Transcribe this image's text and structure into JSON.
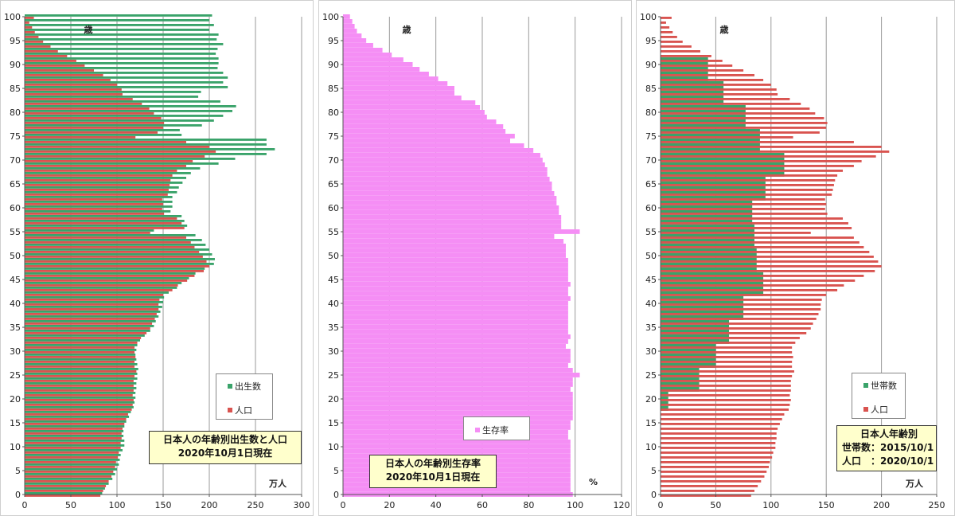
{
  "colors": {
    "birth": "#3aa36a",
    "pop": "#d9534f",
    "survival": "#f58ef5",
    "household": "#3aa36a"
  },
  "chart_data": [
    {
      "type": "bar",
      "orientation": "horizontal",
      "title": "日本人の年齢別出生数と人口",
      "subtitle": "2020年10月1日現在",
      "ylabel": "歳",
      "unit_label": "万人",
      "xlim": [
        0,
        300
      ],
      "ylim": [
        0,
        100
      ],
      "xticks": [
        0,
        50,
        100,
        150,
        200,
        250,
        300
      ],
      "yticks": [
        0,
        5,
        10,
        15,
        20,
        25,
        30,
        35,
        40,
        45,
        50,
        55,
        60,
        65,
        70,
        75,
        80,
        85,
        90,
        95,
        100
      ],
      "legend_position": "bottom-right",
      "series": [
        {
          "name": "出生数",
          "values": [
            84,
            87,
            91,
            95,
            98,
            100,
            102,
            103,
            104,
            106,
            108,
            108,
            107,
            107,
            108,
            110,
            113,
            115,
            118,
            119,
            120,
            120,
            121,
            121,
            122,
            122,
            123,
            122,
            121,
            120,
            121,
            122,
            125,
            130,
            136,
            140,
            142,
            145,
            147,
            149,
            150,
            151,
            156,
            165,
            170,
            178,
            185,
            195,
            205,
            206,
            203,
            200,
            196,
            192,
            185,
            140,
            176,
            173,
            170,
            158,
            160,
            160,
            160,
            165,
            167,
            171,
            175,
            180,
            190,
            210,
            228,
            262,
            271,
            262,
            262,
            170,
            168,
            192,
            205,
            215,
            225,
            229,
            212,
            188,
            191,
            220,
            215,
            220,
            215,
            209,
            210,
            210,
            207,
            209,
            215,
            208,
            210,
            200,
            205,
            200,
            203
          ]
        },
        {
          "name": "人口",
          "values": [
            82,
            85,
            88,
            91,
            94,
            96,
            98,
            99,
            101,
            102,
            104,
            104,
            105,
            105,
            106,
            108,
            110,
            112,
            116,
            117,
            118,
            117,
            118,
            118,
            118,
            119,
            121,
            119,
            119,
            120,
            119,
            119,
            122,
            126,
            132,
            136,
            138,
            141,
            143,
            145,
            145,
            146,
            150,
            160,
            166,
            176,
            184,
            194,
            200,
            197,
            193,
            189,
            184,
            180,
            175,
            136,
            173,
            170,
            165,
            151,
            149,
            150,
            149,
            155,
            156,
            157,
            158,
            160,
            165,
            175,
            182,
            195,
            207,
            200,
            175,
            120,
            144,
            150,
            151,
            148,
            140,
            135,
            127,
            117,
            106,
            105,
            100,
            93,
            85,
            75,
            65,
            56,
            46,
            36,
            28,
            20,
            15,
            11,
            8,
            5,
            10
          ]
        }
      ]
    },
    {
      "type": "bar",
      "orientation": "horizontal",
      "title": "日本人の年齢別生存率",
      "subtitle": "2020年10月1日現在",
      "ylabel": "歳",
      "unit_label": "%",
      "xlim": [
        0,
        120
      ],
      "ylim": [
        0,
        100
      ],
      "xticks": [
        0,
        20,
        40,
        60,
        80,
        100,
        120
      ],
      "yticks": [
        0,
        5,
        10,
        15,
        20,
        25,
        30,
        35,
        40,
        45,
        50,
        55,
        60,
        65,
        70,
        75,
        80,
        85,
        90,
        95,
        100
      ],
      "legend_position": "bottom-right",
      "series": [
        {
          "name": "生存率",
          "values": [
            99,
            98,
            98,
            98,
            98,
            98,
            98,
            98,
            98,
            98,
            98,
            98,
            97,
            97,
            98,
            98,
            99,
            99,
            99,
            99,
            99,
            99,
            98,
            99,
            99,
            102,
            99,
            97,
            98,
            98,
            98,
            96,
            97,
            98,
            97,
            97,
            97,
            97,
            97,
            97,
            97,
            98,
            97,
            97,
            98,
            97,
            97,
            97,
            97,
            97,
            96,
            96,
            96,
            95,
            91,
            102,
            94,
            94,
            94,
            93,
            93,
            92,
            92,
            91,
            90,
            90,
            89,
            88,
            88,
            87,
            86,
            85,
            82,
            78,
            72,
            74,
            70,
            69,
            66,
            62,
            61,
            59,
            57,
            51,
            48,
            48,
            45,
            41,
            37,
            33,
            30,
            26,
            21,
            17,
            13,
            10,
            8,
            6,
            5,
            4,
            3
          ]
        }
      ]
    },
    {
      "type": "bar",
      "orientation": "horizontal",
      "title": "日本人年齢別",
      "subtitle_lines": [
        "世帯数：2015/10/1",
        "人口　：2020/10/1"
      ],
      "ylabel": "歳",
      "unit_label": "万人",
      "xlim": [
        0,
        250
      ],
      "ylim": [
        0,
        100
      ],
      "xticks": [
        0,
        50,
        100,
        150,
        200,
        250
      ],
      "yticks": [
        0,
        5,
        10,
        15,
        20,
        25,
        30,
        35,
        40,
        45,
        50,
        55,
        60,
        65,
        70,
        75,
        80,
        85,
        90,
        95,
        100
      ],
      "legend_position": "bottom-right",
      "series": [
        {
          "name": "世帯数",
          "values": [
            0,
            0,
            0,
            0,
            0,
            0,
            0,
            0,
            0,
            0,
            0,
            0,
            0,
            0,
            0,
            0,
            0,
            0,
            7,
            7,
            7,
            7,
            35,
            35,
            35,
            35,
            35,
            50,
            50,
            50,
            50,
            50,
            62,
            62,
            62,
            62,
            62,
            75,
            75,
            75,
            75,
            75,
            93,
            93,
            93,
            93,
            93,
            87,
            87,
            87,
            87,
            87,
            85,
            85,
            85,
            85,
            85,
            83,
            83,
            83,
            83,
            83,
            95,
            95,
            95,
            95,
            95,
            112,
            112,
            112,
            112,
            112,
            90,
            90,
            90,
            90,
            90,
            77,
            77,
            77,
            77,
            77,
            57,
            57,
            57,
            57,
            57,
            43,
            43,
            43,
            43,
            43,
            0,
            0,
            0,
            0,
            0,
            0,
            0,
            0,
            0
          ]
        },
        {
          "name": "人口",
          "values": [
            82,
            85,
            88,
            91,
            94,
            96,
            98,
            99,
            101,
            102,
            104,
            104,
            105,
            105,
            106,
            108,
            110,
            112,
            116,
            117,
            118,
            117,
            118,
            118,
            118,
            119,
            121,
            119,
            119,
            120,
            119,
            119,
            122,
            126,
            132,
            136,
            138,
            141,
            143,
            145,
            145,
            146,
            150,
            160,
            166,
            176,
            184,
            194,
            200,
            197,
            193,
            189,
            184,
            180,
            175,
            136,
            173,
            170,
            165,
            151,
            149,
            150,
            149,
            155,
            156,
            157,
            158,
            160,
            165,
            175,
            182,
            195,
            207,
            200,
            175,
            120,
            144,
            150,
            151,
            148,
            140,
            135,
            127,
            117,
            106,
            105,
            100,
            93,
            85,
            75,
            65,
            56,
            46,
            36,
            28,
            20,
            15,
            11,
            8,
            5,
            10
          ]
        }
      ]
    }
  ]
}
